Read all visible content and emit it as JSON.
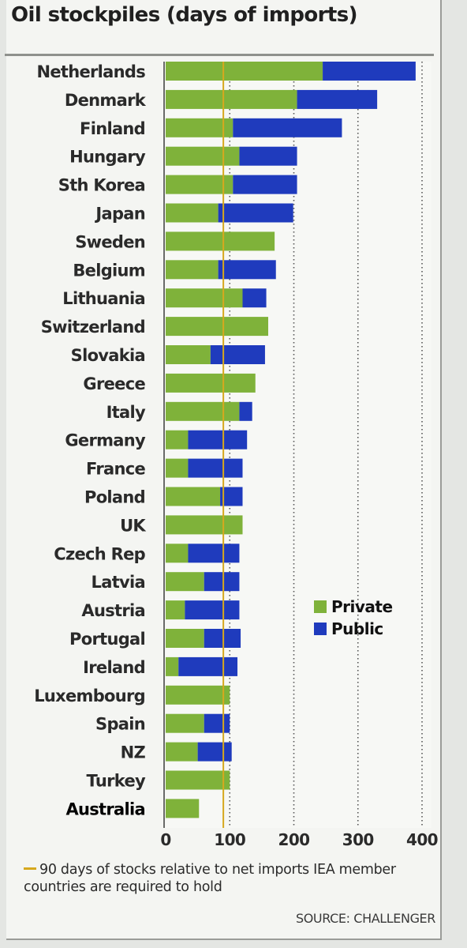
{
  "chart_data": {
    "type": "bar",
    "orientation": "horizontal",
    "stacked": true,
    "title": "Oil stockpiles (days of imports)",
    "categories": [
      "Netherlands",
      "Denmark",
      "Finland",
      "Hungary",
      "Sth Korea",
      "Japan",
      "Sweden",
      "Belgium",
      "Lithuania",
      "Switzerland",
      "Slovakia",
      "Greece",
      "Italy",
      "Germany",
      "France",
      "Poland",
      "UK",
      "Czech Rep",
      "Latvia",
      "Austria",
      "Portugal",
      "Ireland",
      "Luxembourg",
      "Spain",
      "NZ",
      "Turkey",
      "Australia"
    ],
    "highlight_category": "Australia",
    "series": [
      {
        "name": "Private",
        "color": "#7fb23a",
        "values": [
          245,
          205,
          105,
          115,
          105,
          82,
          170,
          82,
          120,
          160,
          70,
          140,
          115,
          35,
          35,
          85,
          120,
          35,
          60,
          30,
          60,
          20,
          100,
          60,
          50,
          100,
          52
        ]
      },
      {
        "name": "Public",
        "color": "#1f3bbd",
        "values": [
          145,
          125,
          170,
          90,
          100,
          117,
          0,
          90,
          37,
          0,
          85,
          0,
          20,
          92,
          85,
          35,
          0,
          80,
          55,
          85,
          57,
          92,
          0,
          40,
          53,
          0,
          0
        ]
      }
    ],
    "reference_line": {
      "value": 90,
      "color": "#d6a81e"
    },
    "x_ticks": [
      0,
      100,
      200,
      300,
      400
    ],
    "xlim": [
      0,
      400
    ],
    "grid": "vertical dotted at 100, 200, 300, 400",
    "legend_position": "right, middle",
    "note_text": "90 days of stocks relative to net imports IEA member countries are required to hold",
    "source": "SOURCE: CHALLENGER"
  }
}
